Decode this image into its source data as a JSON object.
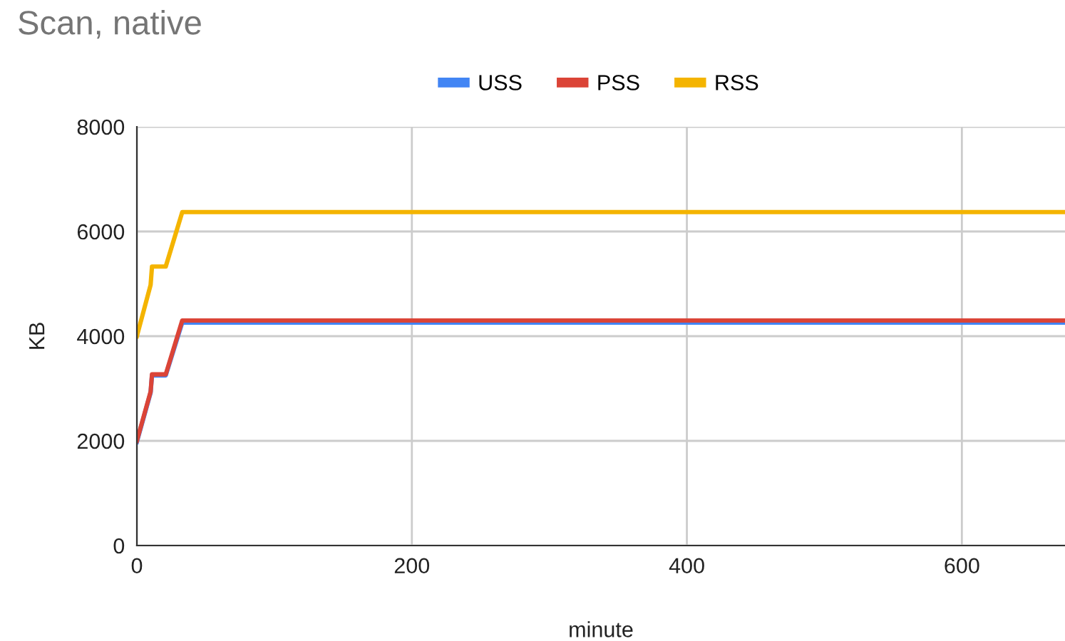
{
  "chart_data": {
    "type": "line",
    "title": "Scan, native",
    "xlabel": "minute",
    "ylabel": "KB",
    "x": [
      0,
      10,
      11,
      21,
      33,
      675
    ],
    "series": [
      {
        "name": "USS",
        "color": "#4285f4",
        "values": [
          1980,
          2920,
          3250,
          3250,
          4260,
          4260
        ]
      },
      {
        "name": "PSS",
        "color": "#db4437",
        "values": [
          2000,
          2940,
          3270,
          3270,
          4300,
          4300
        ]
      },
      {
        "name": "RSS",
        "color": "#f4b400",
        "values": [
          4000,
          4980,
          5330,
          5330,
          6370,
          6370
        ]
      }
    ],
    "xlim": [
      0,
      675
    ],
    "xticks": [
      0,
      200,
      400,
      600
    ],
    "ylim": [
      0,
      8000
    ],
    "yticks": [
      0,
      2000,
      4000,
      6000,
      8000
    ],
    "grid": true,
    "legend": "top",
    "line_style": "solid",
    "marker": "none"
  }
}
